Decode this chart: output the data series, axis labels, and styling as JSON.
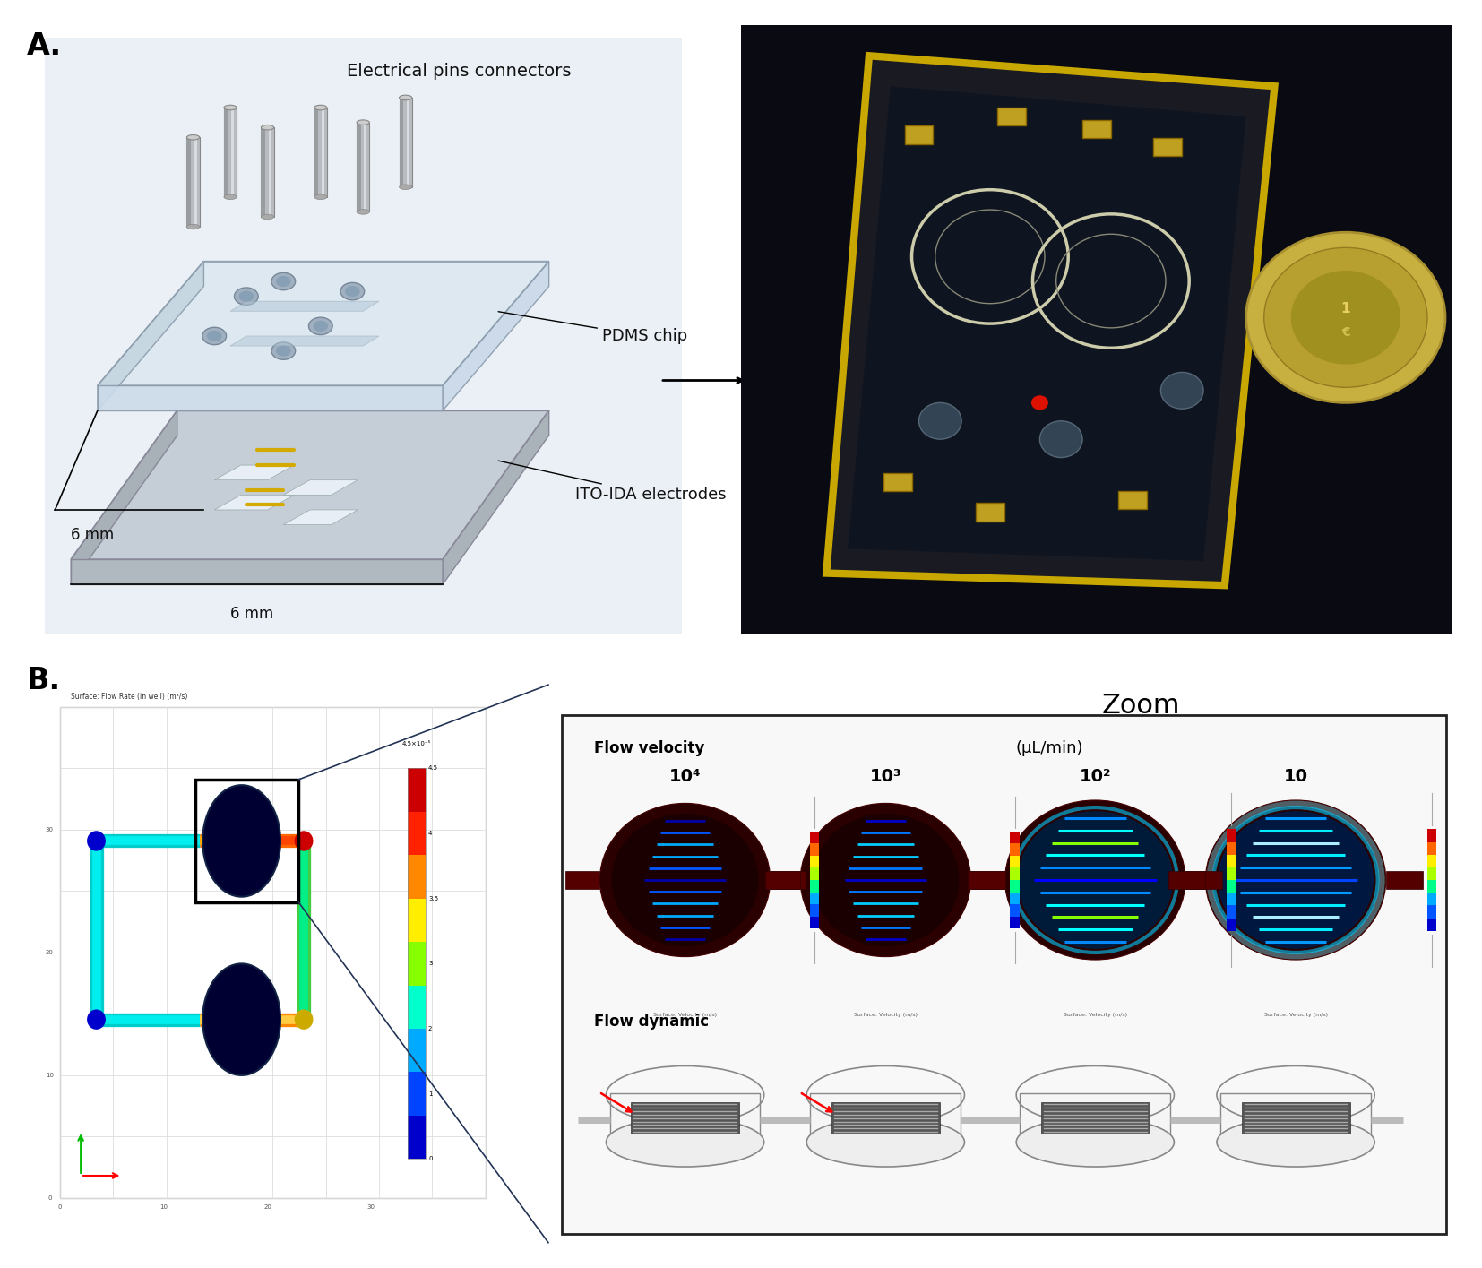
{
  "panel_A_label": "A.",
  "panel_B_label": "B.",
  "panel_A_title_text": "Electrical pins connectors",
  "panel_A_label2": "PDMS chip",
  "panel_A_label3": "ITO-IDA electrodes",
  "panel_A_dim1": "6 mm",
  "panel_A_dim2": "6 mm",
  "panel_B_zoom_title": "Zoom",
  "panel_B_flow_vel": "Flow velocity",
  "panel_B_unit": "(μL/min)",
  "panel_B_flow_dyn": "Flow dynamic",
  "panel_B_vals": [
    "10⁴",
    "10³",
    "10²",
    "10"
  ],
  "bg_color": "#ffffff",
  "label_fontsize": 24,
  "text_color": "#000000",
  "red_title_color": "#cc2200",
  "zoom_box_color": "#222222",
  "surface_label": "Surface: Flow Rate (in well) (m³/s)",
  "cbar_label": "4.5×10⁻⁵",
  "arrow_color": "#111111"
}
